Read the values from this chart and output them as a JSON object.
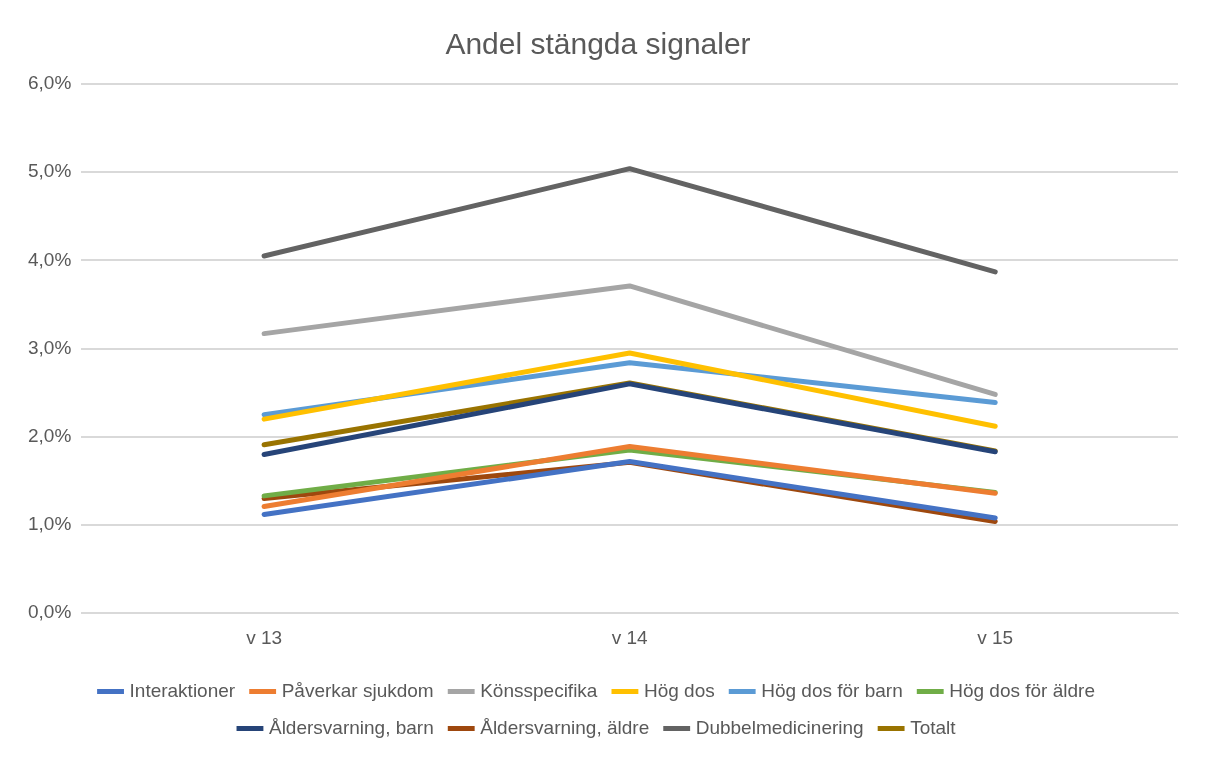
{
  "chart_data": {
    "type": "line",
    "title": "Andel stängda signaler",
    "categories": [
      "v 13",
      "v 14",
      "v 15"
    ],
    "ylim": [
      0,
      6
    ],
    "yticks": [
      {
        "value": 0,
        "label": "0,0%"
      },
      {
        "value": 1,
        "label": "1,0%"
      },
      {
        "value": 2,
        "label": "2,0%"
      },
      {
        "value": 3,
        "label": "3,0%"
      },
      {
        "value": 4,
        "label": "4,0%"
      },
      {
        "value": 5,
        "label": "5,0%"
      },
      {
        "value": 6,
        "label": "6,0%"
      }
    ],
    "grid": "y",
    "legend": "bottom",
    "marker": "none",
    "line_style": "solid",
    "series": [
      {
        "name": "Interaktioner",
        "color": "#4472c4",
        "values": [
          1.12,
          1.72,
          1.08
        ]
      },
      {
        "name": "Påverkar sjukdom",
        "color": "#ed7d31",
        "values": [
          1.21,
          1.89,
          1.36
        ]
      },
      {
        "name": "Könsspecifika",
        "color": "#a5a5a5",
        "values": [
          3.17,
          3.71,
          2.48
        ]
      },
      {
        "name": "Hög dos",
        "color": "#ffc000",
        "values": [
          2.2,
          2.95,
          2.12
        ]
      },
      {
        "name": "Hög dos för barn",
        "color": "#5b9bd5",
        "values": [
          2.25,
          2.84,
          2.39
        ]
      },
      {
        "name": "Hög dos för äldre",
        "color": "#70ad47",
        "values": [
          1.33,
          1.85,
          1.37
        ]
      },
      {
        "name": "Åldersvarning, barn",
        "color": "#264478",
        "values": [
          1.8,
          2.6,
          1.83
        ]
      },
      {
        "name": "Åldersvarning, äldre",
        "color": "#9e480e",
        "values": [
          1.3,
          1.71,
          1.04
        ]
      },
      {
        "name": "Dubbelmedicinering",
        "color": "#636363",
        "values": [
          4.05,
          5.04,
          3.87
        ]
      },
      {
        "name": "Totalt",
        "color": "#997300",
        "values": [
          1.91,
          2.61,
          1.84
        ]
      }
    ]
  }
}
